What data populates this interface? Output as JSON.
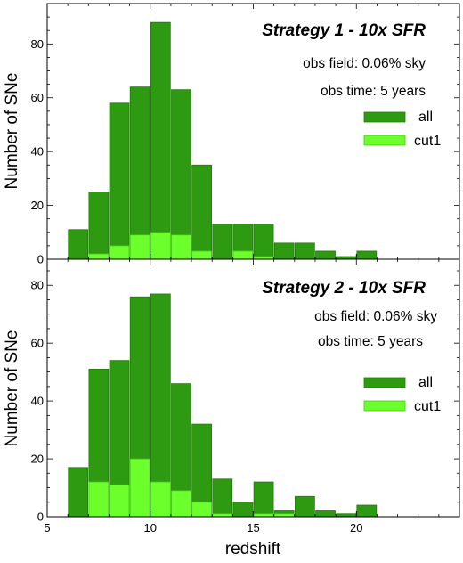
{
  "chart_data": [
    {
      "type": "bar",
      "title": "Strategy 1 - 10x SFR",
      "annotations": [
        "obs field: 0.06% sky",
        "obs time: 5 years"
      ],
      "ylabel": "Number of SNe",
      "xlabel": "",
      "xlim": [
        5,
        25
      ],
      "ylim": [
        0,
        95
      ],
      "x_ticks": [
        5,
        10,
        15,
        20
      ],
      "y_ticks": [
        0,
        20,
        40,
        60,
        80
      ],
      "bin_width": 1,
      "bin_left_edges": [
        6,
        7,
        8,
        9,
        10,
        11,
        12,
        13,
        14,
        15,
        16,
        17,
        18,
        19,
        20
      ],
      "legend_position": "right",
      "series": [
        {
          "name": "all",
          "color": "#2e9a12",
          "values": [
            11,
            25,
            58,
            64,
            88,
            63,
            35,
            13,
            13,
            13,
            6,
            6,
            3,
            1,
            3
          ]
        },
        {
          "name": "cut1",
          "color": "#6cff2c",
          "values": [
            0,
            2,
            5,
            9,
            10,
            9,
            3,
            0,
            3,
            1,
            0,
            0,
            0,
            0,
            0
          ]
        }
      ]
    },
    {
      "type": "bar",
      "title": "Strategy 2 - 10x SFR",
      "annotations": [
        "obs field: 0.06% sky",
        "obs time: 5 years"
      ],
      "ylabel": "Number of SNe",
      "xlabel": "redshift",
      "xlim": [
        5,
        25
      ],
      "ylim": [
        0,
        89
      ],
      "x_ticks": [
        5,
        10,
        15,
        20
      ],
      "x_tick_labels": [
        "5",
        "10",
        "15",
        "20"
      ],
      "y_ticks": [
        0,
        20,
        40,
        60,
        80
      ],
      "bin_width": 1,
      "bin_left_edges": [
        6,
        7,
        8,
        9,
        10,
        11,
        12,
        13,
        14,
        15,
        16,
        17,
        18,
        19,
        20
      ],
      "legend_position": "right",
      "series": [
        {
          "name": "all",
          "color": "#2e9a12",
          "values": [
            17,
            51,
            54,
            76,
            77,
            46,
            32,
            13,
            5,
            12,
            2,
            7,
            2,
            1,
            4
          ]
        },
        {
          "name": "cut1",
          "color": "#6cff2c",
          "values": [
            0,
            12,
            11,
            20,
            12,
            9,
            5,
            1,
            0,
            1,
            1,
            0,
            0,
            0,
            0
          ]
        }
      ]
    }
  ]
}
